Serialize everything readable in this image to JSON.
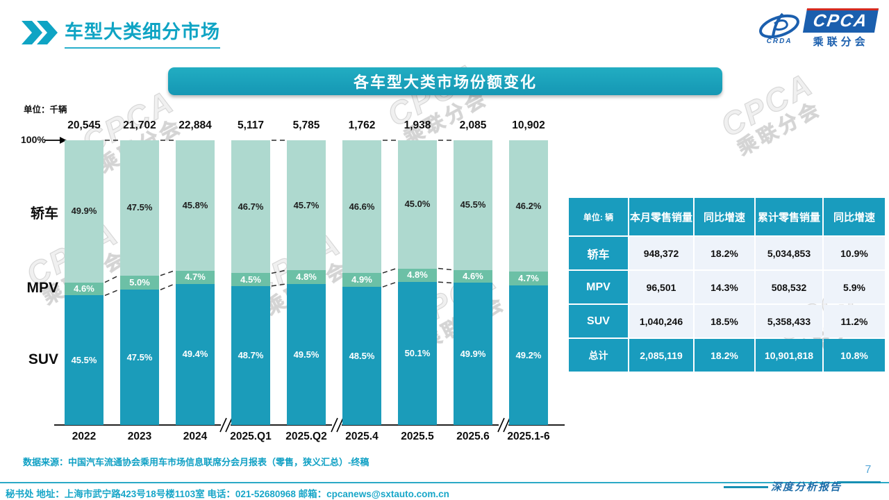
{
  "page": {
    "title": "车型大类细分市场",
    "page_number": "7",
    "report_label": "深度分析报告",
    "source_note": "数据来源：中国汽车流通协会乘用车市场信息联席分会月报表（零售，狭义汇总）-终稿",
    "contact": "秘书处  地址：上海市武宁路423号18号楼1103室 电话：021-52680968   邮箱：cpcanews@sxtauto.com.cn"
  },
  "logo": {
    "cpca": "CPCA",
    "crda": "CRDA",
    "sub": "乘联分会"
  },
  "banner": {
    "title": "各车型大类市场份额变化"
  },
  "chart_data": {
    "type": "bar",
    "stacked": true,
    "title": "各车型大类市场份额变化",
    "unit_label": "单位：千辆",
    "axis_top_label": "100%",
    "categories": [
      "2022",
      "2023",
      "2024",
      "2025.Q1",
      "2025.Q2",
      "2025.4",
      "2025.5",
      "2025.6",
      "2025.1-6"
    ],
    "totals_thousand_units": [
      20545,
      21702,
      22884,
      5117,
      5785,
      1762,
      1938,
      2085,
      10902
    ],
    "series": [
      {
        "name": "轿车",
        "color": "#aed9cf",
        "label_color": "#1e1e1e",
        "values": [
          49.9,
          47.5,
          45.8,
          46.7,
          45.7,
          46.6,
          45.0,
          45.5,
          46.2
        ]
      },
      {
        "name": "MPV",
        "color": "#6cc0a6",
        "label_color": "#ffffff",
        "values": [
          4.6,
          5.0,
          4.7,
          4.5,
          4.8,
          4.9,
          4.8,
          4.6,
          4.7
        ]
      },
      {
        "name": "SUV",
        "color": "#1b9cba",
        "label_color": "#ffffff",
        "values": [
          45.5,
          47.5,
          49.4,
          48.7,
          49.5,
          48.5,
          50.1,
          49.9,
          49.2
        ]
      }
    ],
    "ylim": [
      0,
      100
    ],
    "axis_breaks_after": [
      2,
      4,
      7
    ],
    "connected_pairs": [
      [
        0,
        1
      ],
      [
        1,
        2
      ],
      [
        3,
        4
      ],
      [
        5,
        6
      ],
      [
        6,
        7
      ]
    ],
    "legend_position": "left"
  },
  "table": {
    "unit_header": "单位: 辆",
    "columns": [
      "本月零售销量",
      "同比增速",
      "累计零售销量",
      "同比增速"
    ],
    "rows": [
      {
        "label": "轿车",
        "values": [
          "948,372",
          "18.2%",
          "5,034,853",
          "10.9%"
        ],
        "is_total": false
      },
      {
        "label": "MPV",
        "values": [
          "96,501",
          "14.3%",
          "508,532",
          "5.9%"
        ],
        "is_total": false
      },
      {
        "label": "SUV",
        "values": [
          "1,040,246",
          "18.5%",
          "5,358,433",
          "11.2%"
        ],
        "is_total": false
      },
      {
        "label": "总计",
        "values": [
          "2,085,119",
          "18.2%",
          "10,901,818",
          "10.8%"
        ],
        "is_total": true
      }
    ]
  },
  "watermark": {
    "line1": "CPCA",
    "line2": "乘联分会"
  },
  "colors": {
    "accent_teal": "#0fa4c4",
    "banner_teal": "#1aa6bd",
    "sedan_fill": "#aed9cf",
    "mpv_fill": "#6cc0a6",
    "suv_fill": "#1b9cba",
    "table_teal": "#199cbe",
    "table_cell_bg": "#eef3fa",
    "logo_blue": "#1b5fae",
    "logo_red": "#d42a20",
    "page_number_blue": "#57a7d8"
  }
}
